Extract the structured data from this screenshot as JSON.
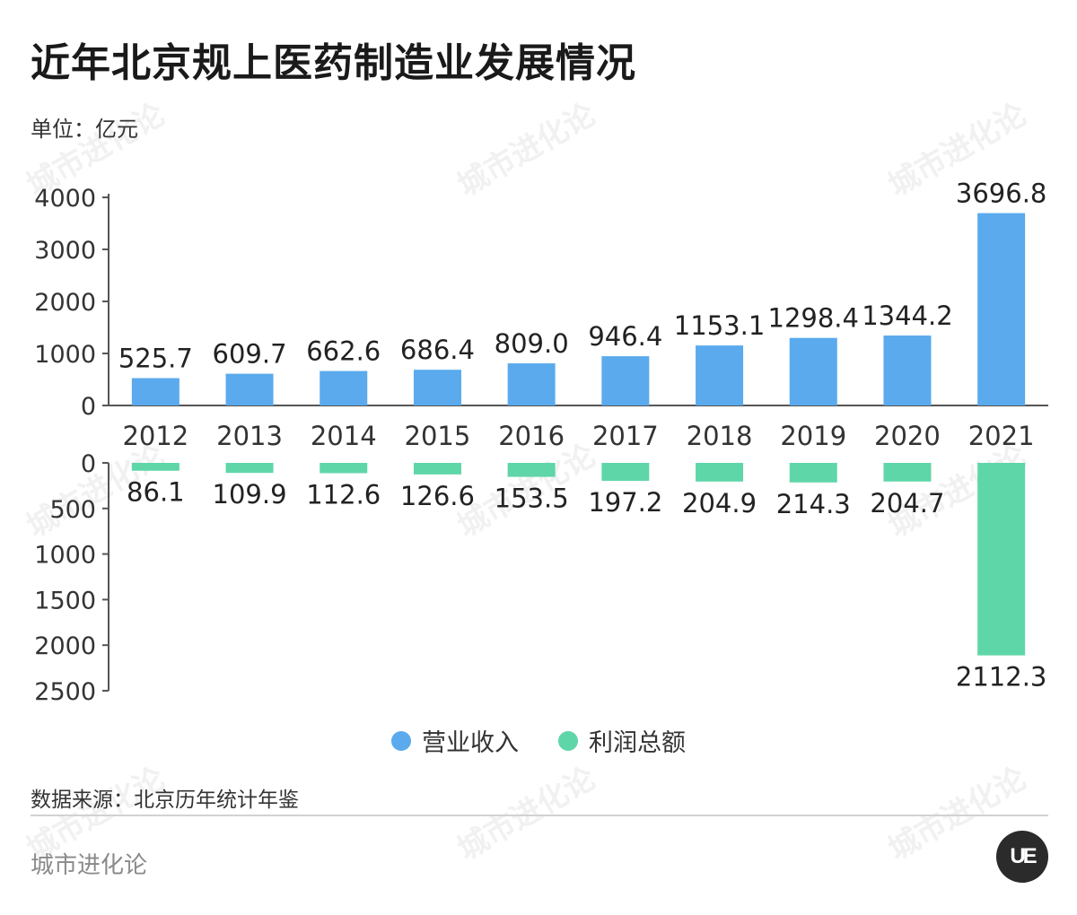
{
  "title": "近年北京规上医药制造业发展情况",
  "unit_label": "单位：亿元",
  "source": "数据来源：北京历年统计年鉴",
  "brand": "城市进化论",
  "watermark": "城市进化论",
  "logo_text": "UE",
  "colors": {
    "revenue": "#5aaaed",
    "profit": "#5fd6a8",
    "axis": "#555555"
  },
  "legend": [
    {
      "label": "营业收入",
      "color": "#5aaaed"
    },
    {
      "label": "利润总额",
      "color": "#5fd6a8"
    }
  ],
  "chart_data": [
    {
      "type": "bar",
      "categories": [
        "2012",
        "2013",
        "2014",
        "2015",
        "2016",
        "2017",
        "2018",
        "2019",
        "2020",
        "2021"
      ],
      "series": [
        {
          "name": "营业收入",
          "values": [
            525.7,
            609.7,
            662.6,
            686.4,
            809.0,
            946.4,
            1153.1,
            1298.4,
            1344.2,
            3696.8
          ],
          "labels": [
            "525.7",
            "609.7",
            "662.6",
            "686.4",
            "809.0",
            "946.4",
            "1153.1",
            "1298.4",
            "1344.2",
            "3696.8"
          ]
        }
      ],
      "yticks": [
        "0",
        "1000",
        "2000",
        "3000",
        "4000"
      ],
      "ylim": [
        0,
        4000
      ]
    },
    {
      "type": "bar",
      "categories": [
        "2012",
        "2013",
        "2014",
        "2015",
        "2016",
        "2017",
        "2018",
        "2019",
        "2020",
        "2021"
      ],
      "series": [
        {
          "name": "利润总额",
          "values": [
            86.1,
            109.9,
            112.6,
            126.6,
            153.5,
            197.2,
            204.9,
            214.3,
            204.7,
            2112.3
          ],
          "labels": [
            "86.1",
            "109.9",
            "112.6",
            "126.6",
            "153.5",
            "197.2",
            "204.9",
            "214.3",
            "204.7",
            "2112.3"
          ]
        }
      ],
      "yticks": [
        "0",
        "500",
        "1000",
        "1500",
        "2000",
        "2500"
      ],
      "ylim": [
        0,
        2500
      ],
      "inverted": true
    }
  ]
}
